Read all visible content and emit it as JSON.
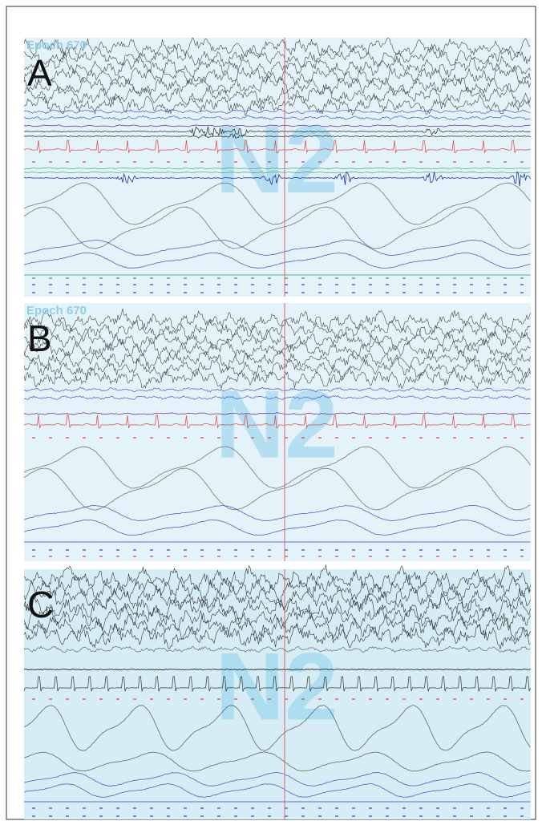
{
  "panels": [
    {
      "letter": "A",
      "epoch": "Epoch 670",
      "stage": "N2"
    },
    {
      "letter": "B",
      "epoch": "Epoch 670",
      "stage": "N2"
    },
    {
      "letter": "C",
      "stage": "N2"
    }
  ]
}
